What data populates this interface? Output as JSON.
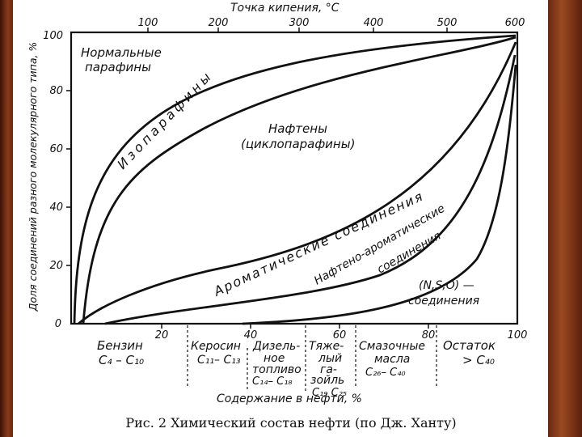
{
  "top_axis": {
    "title": "Точка кипения, °C",
    "ticks": [
      "100",
      "200",
      "300",
      "400",
      "500",
      "600"
    ]
  },
  "left_axis": {
    "title": "Доля соединений разного молекулярного типа, %",
    "ticks": [
      "0",
      "20",
      "40",
      "60",
      "80",
      "100"
    ]
  },
  "bottom_axis": {
    "title": "Содержание в нефти, %",
    "ticks": [
      "20",
      "40",
      "60",
      "80",
      "100"
    ]
  },
  "regions": {
    "normal_paraffins_1": "Нормальные",
    "normal_paraffins_2": "парафины",
    "isoparaffins": "Изопарафины",
    "naphthenes_1": "Нафтены",
    "naphthenes_2": "(циклопарафины)",
    "aromatics": "Ароматические соединения",
    "naphtheno_aromatics_1": "Нафтено-ароматические",
    "naphtheno_aromatics_2": "соединения",
    "nso_1": "(N,S,O) —",
    "nso_2": "соединения"
  },
  "fractions": [
    {
      "name": "Бензин",
      "formula": "C₄ – C₁₀"
    },
    {
      "name": "Керосин",
      "formula": "C₁₁– C₁₃"
    },
    {
      "name_1": "Дизель-",
      "name_2": "ное",
      "name_3": "топливо",
      "formula": "C₁₄– C₁₈"
    },
    {
      "name_1": "Тяже-",
      "name_2": "лый",
      "name_3": "га-",
      "name_4": "зойль",
      "formula": "C₁₉ C₂₅"
    },
    {
      "name_1": "Смазочные",
      "name_2": "масла",
      "formula": "C₂₆– C₄₀"
    },
    {
      "name": "Остаток",
      "formula": "> C₄₀"
    }
  ],
  "caption": "Рис. 2 Химический состав нефти (по Дж. Ханту)"
}
